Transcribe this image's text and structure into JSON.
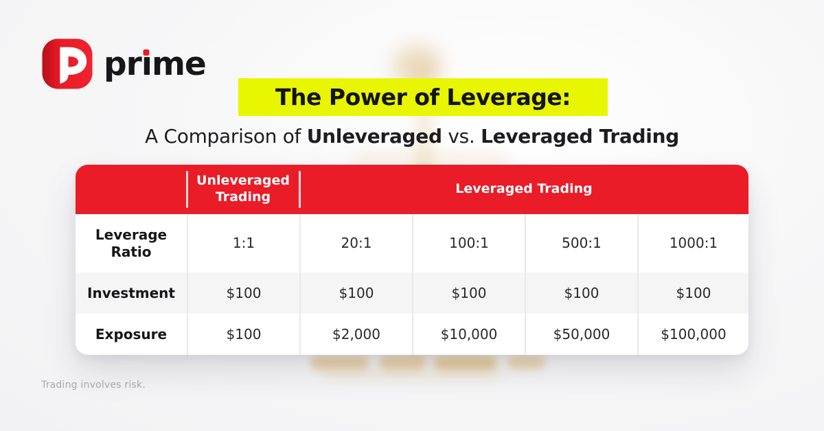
{
  "colors": {
    "brand_red": "#e91c27",
    "highlight_yellow": "#e9f601",
    "row_alt_gray": "#f5f5f6",
    "watermark_gold": "#dcaf5e"
  },
  "logo": {
    "brand": "prime",
    "wordmark_pr": "pr",
    "wordmark_i": "ı",
    "wordmark_me": "me"
  },
  "title": {
    "text": "The Power of Leverage:"
  },
  "subtitle": {
    "pre": "A Comparison of ",
    "bold_1": "Unleveraged",
    "mid": " vs. ",
    "bold_2": "Leveraged Trading"
  },
  "table": {
    "header": {
      "corner": "",
      "unleveraged": "Unleveraged Trading",
      "leveraged": "Leveraged Trading"
    },
    "rows": [
      {
        "label": "Leverage Ratio",
        "values": [
          "1:1",
          "20:1",
          "100:1",
          "500:1",
          "1000:1"
        ]
      },
      {
        "label": "Investment",
        "values": [
          "$100",
          "$100",
          "$100",
          "$100",
          "$100"
        ]
      },
      {
        "label": "Exposure",
        "values": [
          "$100",
          "$2,000",
          "$10,000",
          "$50,000",
          "$100,000"
        ]
      }
    ]
  },
  "footer": {
    "disclaimer": "Trading involves risk."
  },
  "chart_data": {
    "type": "table",
    "title": "The Power of Leverage: A Comparison of Unleveraged vs. Leveraged Trading",
    "column_groups": [
      {
        "name": "Unleveraged Trading",
        "columns": [
          "1:1"
        ]
      },
      {
        "name": "Leveraged Trading",
        "columns": [
          "20:1",
          "100:1",
          "500:1",
          "1000:1"
        ]
      }
    ],
    "rows": [
      {
        "label": "Leverage Ratio",
        "values": [
          "1:1",
          "20:1",
          "100:1",
          "500:1",
          "1000:1"
        ]
      },
      {
        "label": "Investment",
        "values": [
          100,
          100,
          100,
          100,
          100
        ]
      },
      {
        "label": "Exposure",
        "values": [
          100,
          2000,
          10000,
          50000,
          100000
        ]
      }
    ],
    "units": "USD",
    "notes": "Trading involves risk."
  }
}
